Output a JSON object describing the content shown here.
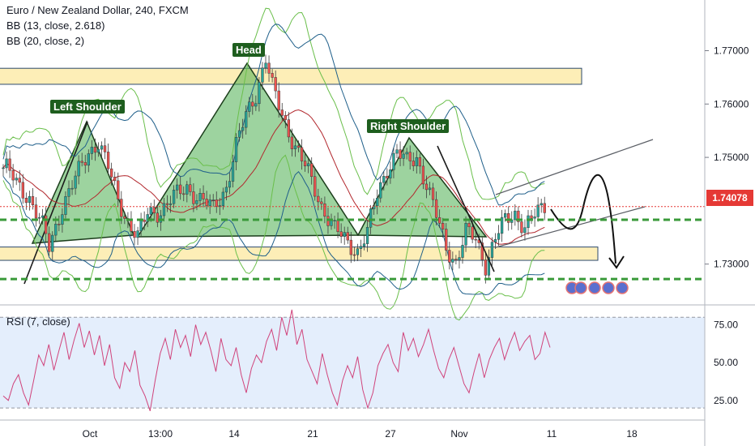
{
  "header": {
    "symbol_line": "Euro / New Zealand Dollar, 240, FXCM",
    "indicator_1": "BB (13, close, 2.618)",
    "indicator_2": "BB (20, close, 2)",
    "rsi_label": "RSI (7, close)"
  },
  "annotations": {
    "head": "Head",
    "left_shoulder": "Left Shoulder",
    "right_shoulder": "Right Shoulder"
  },
  "current_price": "1.74078",
  "colors": {
    "price_tag": "#e53935",
    "neckline_dash": "#3a9a3a",
    "zone_fill": "#fdeeb7",
    "pattern_fill": "#4caf50",
    "rsi_line": "#d0437b",
    "rsi_band": "#e4eefc",
    "bb_outer": "#6abf4b",
    "bb_inner": "#1f5f8a"
  },
  "chart_data": [
    {
      "type": "candlestick",
      "title": "Euro / New Zealand Dollar, 240, FXCM",
      "y_ticks": [
        "1.77000",
        "1.76000",
        "1.75000",
        "1.73000"
      ],
      "x_ticks": [
        "Oct",
        "13:00",
        "14",
        "21",
        "27",
        "Nov",
        "11",
        "18"
      ],
      "ylim": [
        1.7225,
        1.7795
      ],
      "current_price": 1.74078,
      "dashed_levels": [
        1.7383,
        1.7272
      ],
      "zones": [
        {
          "from": 1.7637,
          "to": 1.7667
        },
        {
          "from": 1.7307,
          "to": 1.7332
        }
      ],
      "pattern": "head and shoulders",
      "close_path": [
        {
          "x": 1,
          "y": 1.748
        },
        {
          "x": 4,
          "y": 1.745
        },
        {
          "x": 8,
          "y": 1.7425
        },
        {
          "x": 12,
          "y": 1.737
        },
        {
          "x": 14,
          "y": 1.733
        },
        {
          "x": 18,
          "y": 1.741
        },
        {
          "x": 22,
          "y": 1.746
        },
        {
          "x": 26,
          "y": 1.751
        },
        {
          "x": 29,
          "y": 1.753
        },
        {
          "x": 32,
          "y": 1.748
        },
        {
          "x": 35,
          "y": 1.742
        },
        {
          "x": 38,
          "y": 1.738
        },
        {
          "x": 41,
          "y": 1.735
        },
        {
          "x": 44,
          "y": 1.7395
        },
        {
          "x": 48,
          "y": 1.74
        },
        {
          "x": 52,
          "y": 1.7425
        },
        {
          "x": 56,
          "y": 1.7445
        },
        {
          "x": 60,
          "y": 1.742
        },
        {
          "x": 64,
          "y": 1.7405
        },
        {
          "x": 68,
          "y": 1.7445
        },
        {
          "x": 71,
          "y": 1.752
        },
        {
          "x": 74,
          "y": 1.758
        },
        {
          "x": 77,
          "y": 1.762
        },
        {
          "x": 80,
          "y": 1.7685
        },
        {
          "x": 82,
          "y": 1.763
        },
        {
          "x": 85,
          "y": 1.758
        },
        {
          "x": 89,
          "y": 1.752
        },
        {
          "x": 93,
          "y": 1.747
        },
        {
          "x": 97,
          "y": 1.741
        },
        {
          "x": 101,
          "y": 1.7365
        },
        {
          "x": 105,
          "y": 1.734
        },
        {
          "x": 108,
          "y": 1.7325
        },
        {
          "x": 111,
          "y": 1.736
        },
        {
          "x": 114,
          "y": 1.743
        },
        {
          "x": 117,
          "y": 1.748
        },
        {
          "x": 120,
          "y": 1.751
        },
        {
          "x": 123,
          "y": 1.749
        },
        {
          "x": 126,
          "y": 1.75
        },
        {
          "x": 129,
          "y": 1.745
        },
        {
          "x": 132,
          "y": 1.739
        },
        {
          "x": 135,
          "y": 1.733
        },
        {
          "x": 138,
          "y": 1.7305
        },
        {
          "x": 141,
          "y": 1.736
        },
        {
          "x": 144,
          "y": 1.7345
        },
        {
          "x": 147,
          "y": 1.73
        },
        {
          "x": 150,
          "y": 1.735
        },
        {
          "x": 153,
          "y": 1.738
        },
        {
          "x": 156,
          "y": 1.7395
        },
        {
          "x": 159,
          "y": 1.737
        },
        {
          "x": 162,
          "y": 1.739
        },
        {
          "x": 165,
          "y": 1.7408
        }
      ]
    },
    {
      "type": "line",
      "title": "RSI (7, close)",
      "y_ticks": [
        "75.00",
        "50.00",
        "25.00"
      ],
      "ylim": [
        12,
        86
      ],
      "reference_lines": [
        80,
        20
      ],
      "values": [
        28,
        25,
        36,
        42,
        30,
        22,
        38,
        55,
        48,
        62,
        45,
        58,
        70,
        52,
        65,
        76,
        60,
        71,
        55,
        68,
        48,
        62,
        40,
        33,
        50,
        44,
        58,
        35,
        28,
        18,
        38,
        56,
        66,
        52,
        72,
        60,
        68,
        54,
        75,
        62,
        70,
        58,
        44,
        66,
        52,
        48,
        60,
        42,
        30,
        46,
        55,
        50,
        64,
        72,
        58,
        80,
        68,
        85,
        62,
        72,
        52,
        44,
        36,
        56,
        42,
        30,
        22,
        38,
        48,
        40,
        54,
        32,
        20,
        30,
        48,
        56,
        62,
        50,
        44,
        70,
        58,
        66,
        54,
        62,
        72,
        58,
        46,
        40,
        52,
        60,
        48,
        36,
        30,
        44,
        56,
        40,
        52,
        60,
        66,
        52,
        62,
        70,
        58,
        64,
        68,
        52,
        56,
        70,
        60
      ]
    }
  ]
}
